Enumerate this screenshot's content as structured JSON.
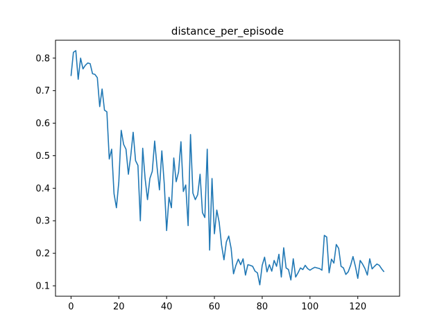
{
  "chart_data": {
    "type": "line",
    "title": "distance_per_episode",
    "xlabel": "",
    "ylabel": "",
    "xlim": [
      -6.5,
      137.5
    ],
    "ylim": [
      0.068,
      0.855
    ],
    "xticks": [
      0,
      20,
      40,
      60,
      80,
      100,
      120
    ],
    "yticks": [
      0.1,
      0.2,
      0.3,
      0.4,
      0.5,
      0.6,
      0.7,
      0.8
    ],
    "grid": false,
    "legend": "none",
    "color": "#1f77b4",
    "series": [
      {
        "x": [
          0,
          1,
          2,
          3,
          4,
          5,
          6,
          7,
          8,
          9,
          10,
          11,
          12,
          13,
          14,
          15,
          16,
          17,
          18,
          19,
          20,
          21,
          22,
          23,
          24,
          25,
          26,
          27,
          28,
          29,
          30,
          31,
          32,
          33,
          34,
          35,
          36,
          37,
          38,
          39,
          40,
          41,
          42,
          43,
          44,
          45,
          46,
          47,
          48,
          49,
          50,
          51,
          52,
          53,
          54,
          55,
          56,
          57,
          58,
          59,
          60,
          61,
          62,
          63,
          64,
          65,
          66,
          67,
          68,
          69,
          70,
          71,
          72,
          73,
          74,
          75,
          76,
          77,
          78,
          79,
          80,
          81,
          82,
          83,
          84,
          85,
          86,
          87,
          88,
          89,
          90,
          91,
          92,
          93,
          94,
          95,
          96,
          97,
          98,
          99,
          100,
          101,
          102,
          103,
          104,
          105,
          106,
          107,
          108,
          109,
          110,
          111,
          112,
          113,
          114,
          115,
          116,
          117,
          118,
          119,
          120,
          121,
          122,
          123,
          124,
          125,
          126,
          127,
          128,
          129,
          130,
          131
        ],
        "values": [
          0.745,
          0.818,
          0.823,
          0.735,
          0.8,
          0.767,
          0.778,
          0.785,
          0.783,
          0.752,
          0.75,
          0.74,
          0.651,
          0.705,
          0.64,
          0.635,
          0.49,
          0.52,
          0.383,
          0.34,
          0.42,
          0.578,
          0.535,
          0.52,
          0.443,
          0.5,
          0.572,
          0.485,
          0.47,
          0.3,
          0.523,
          0.43,
          0.365,
          0.43,
          0.452,
          0.545,
          0.465,
          0.395,
          0.515,
          0.415,
          0.27,
          0.372,
          0.34,
          0.493,
          0.42,
          0.45,
          0.543,
          0.39,
          0.41,
          0.285,
          0.565,
          0.385,
          0.365,
          0.38,
          0.443,
          0.325,
          0.31,
          0.52,
          0.21,
          0.43,
          0.26,
          0.333,
          0.295,
          0.225,
          0.18,
          0.235,
          0.253,
          0.215,
          0.137,
          0.163,
          0.182,
          0.165,
          0.183,
          0.133,
          0.165,
          0.163,
          0.16,
          0.145,
          0.14,
          0.103,
          0.163,
          0.188,
          0.143,
          0.165,
          0.145,
          0.178,
          0.16,
          0.197,
          0.127,
          0.217,
          0.155,
          0.15,
          0.118,
          0.183,
          0.127,
          0.14,
          0.155,
          0.15,
          0.163,
          0.153,
          0.148,
          0.153,
          0.157,
          0.155,
          0.153,
          0.148,
          0.255,
          0.25,
          0.14,
          0.182,
          0.17,
          0.227,
          0.215,
          0.16,
          0.155,
          0.135,
          0.143,
          0.163,
          0.19,
          0.16,
          0.123,
          0.178,
          0.167,
          0.153,
          0.133,
          0.183,
          0.152,
          0.16,
          0.167,
          0.163,
          0.152,
          0.143
        ]
      }
    ]
  }
}
